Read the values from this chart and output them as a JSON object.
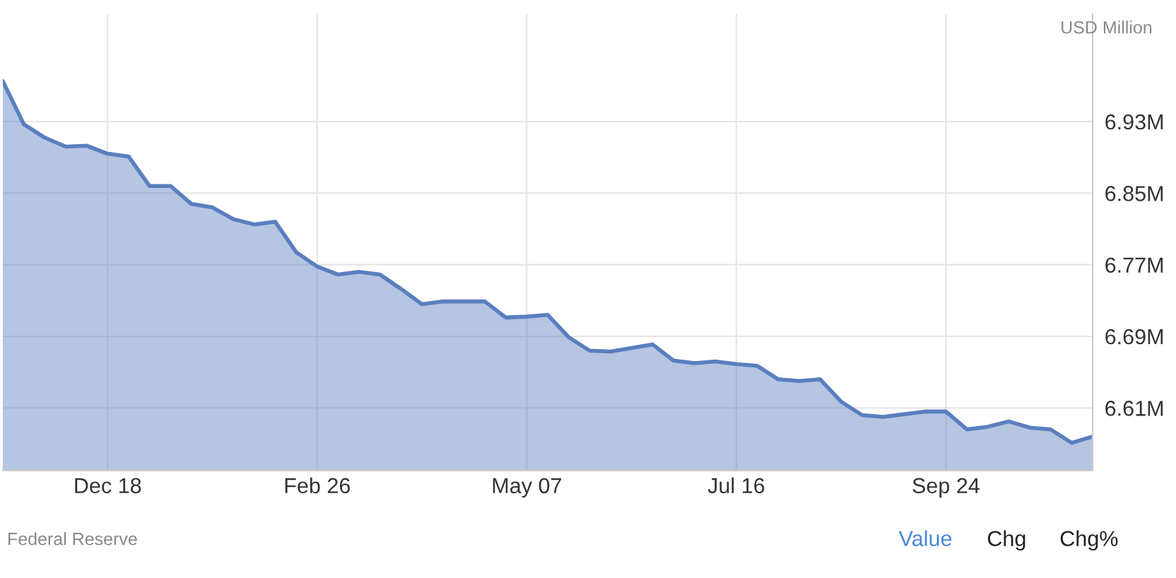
{
  "chart_data": {
    "type": "area",
    "categories": [
      null,
      null,
      null,
      null,
      null,
      "Dec 18",
      null,
      null,
      null,
      null,
      null,
      null,
      null,
      null,
      null,
      "Feb 26",
      null,
      null,
      null,
      null,
      null,
      null,
      null,
      null,
      null,
      "May 07",
      null,
      null,
      null,
      null,
      null,
      null,
      null,
      null,
      null,
      "Jul 16",
      null,
      null,
      null,
      null,
      null,
      null,
      null,
      null,
      null,
      "Sep 24",
      null,
      null,
      null,
      null,
      null,
      null,
      null
    ],
    "series": [
      {
        "color": "#5a7fbf",
        "values": [
          6.975,
          6.927,
          6.912,
          6.902,
          6.903,
          6.894,
          6.891,
          6.858,
          6.858,
          6.838,
          6.834,
          6.821,
          6.815,
          6.818,
          6.784,
          6.768,
          6.759,
          6.762,
          6.759,
          6.743,
          6.726,
          6.729,
          6.729,
          6.729,
          6.711,
          6.712,
          6.714,
          6.689,
          6.674,
          6.673,
          6.677,
          6.681,
          6.663,
          6.66,
          6.662,
          6.659,
          6.657,
          6.642,
          6.64,
          6.642,
          6.617,
          6.602,
          6.6,
          6.603,
          6.606,
          6.606,
          6.586,
          6.589,
          6.595,
          6.588,
          6.586,
          6.571,
          6.578
        ]
      }
    ],
    "ylim": [
      6.54,
      7.05
    ],
    "yticks": [
      {
        "value": 6.61,
        "label": "6.61M"
      },
      {
        "value": 6.69,
        "label": "6.69M"
      },
      {
        "value": 6.77,
        "label": "6.77M"
      },
      {
        "value": 6.85,
        "label": "6.85M"
      },
      {
        "value": 6.93,
        "label": "6.93M"
      }
    ],
    "grid": true,
    "annotations": [
      "USD Million",
      "Federal Reserve",
      "Value",
      "Chg",
      "Chg%"
    ]
  }
}
